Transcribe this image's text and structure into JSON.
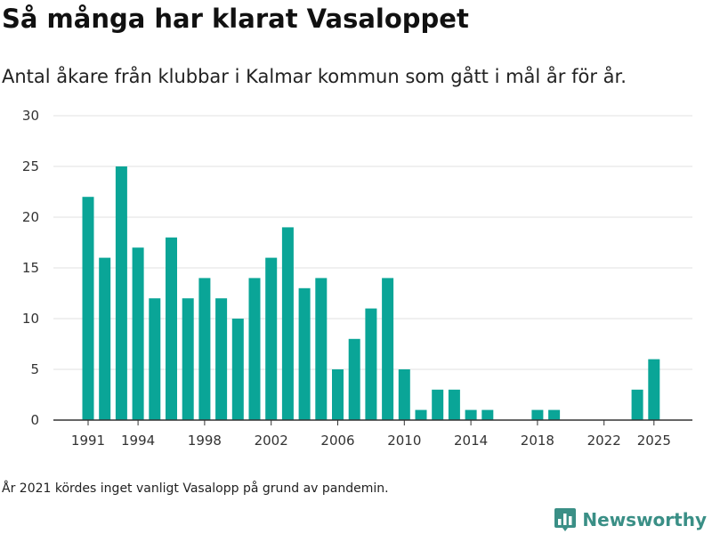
{
  "header": {
    "title": "Så många har klarat Vasaloppet",
    "subtitle": "Antal åkare från klubbar i Kalmar kommun som gått i mål år för år."
  },
  "footer": {
    "note": "År 2021 kördes inget vanligt Vasalopp på grund av pandemin.",
    "brand": "Newsworthy",
    "brand_icon": "bar-chart-logo-icon"
  },
  "colors": {
    "bar": "#0aa597",
    "grid": "#e0e0e0",
    "axis": "#333333",
    "brand": "#3a8f86"
  },
  "chart_data": {
    "type": "bar",
    "x": [
      1991,
      1992,
      1993,
      1994,
      1995,
      1996,
      1997,
      1998,
      1999,
      2000,
      2001,
      2002,
      2003,
      2004,
      2005,
      2006,
      2007,
      2008,
      2009,
      2010,
      2011,
      2012,
      2013,
      2014,
      2015,
      2016,
      2017,
      2018,
      2019,
      2020,
      2021,
      2022,
      2023,
      2024,
      2025
    ],
    "values": [
      22,
      16,
      25,
      17,
      12,
      18,
      12,
      14,
      12,
      10,
      14,
      16,
      19,
      13,
      14,
      5,
      8,
      11,
      14,
      5,
      1,
      3,
      3,
      1,
      1,
      0,
      0,
      1,
      1,
      0,
      0,
      0,
      0,
      3,
      6
    ],
    "x_ticks": [
      1991,
      1994,
      1998,
      2002,
      2006,
      2010,
      2014,
      2018,
      2022,
      2025
    ],
    "y_ticks": [
      0,
      5,
      10,
      15,
      20,
      25,
      30
    ],
    "ylim": [
      0,
      30
    ],
    "xlabel": "",
    "ylabel": "",
    "grid": true
  }
}
